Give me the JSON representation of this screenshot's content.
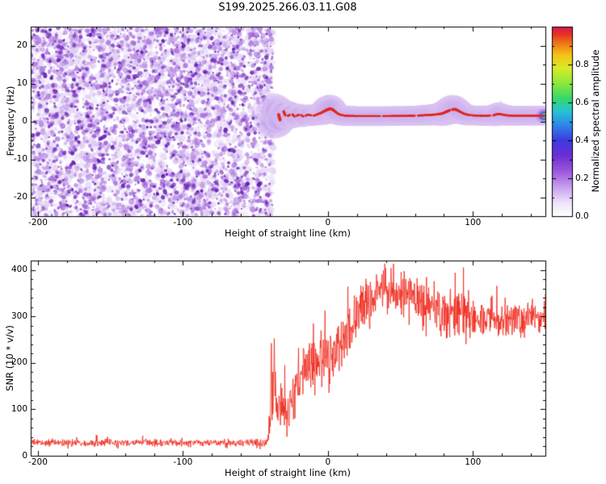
{
  "title": "S199.2025.266.03.11.G08",
  "chart_data": [
    {
      "type": "heatmap",
      "title": "S199.2025.266.03.11.G08",
      "xlabel": "Height of straight line (km)",
      "ylabel": "Frequency (Hz)",
      "xlim": [
        -205,
        150
      ],
      "ylim": [
        -25,
        25
      ],
      "x_ticks": [
        -200,
        -100,
        0,
        100
      ],
      "y_ticks": [
        -20,
        -10,
        0,
        10,
        20
      ],
      "x_minor_step": 20,
      "y_minor_step": 5,
      "noise_region": {
        "x_start": -205,
        "x_end": -38,
        "palette": [
          "#ece2f8",
          "#d6bdf2",
          "#b98ae6",
          "#9a5ad8",
          "#7b2fc8",
          "#5a14a8"
        ]
      },
      "signal_band": {
        "centerline": [
          [
            -38,
            0.3
          ],
          [
            -37,
            2.6
          ],
          [
            -36.2,
            -0.4
          ],
          [
            -35.4,
            1.8
          ],
          [
            -34.5,
            3.0
          ],
          [
            -33.6,
            0.8
          ],
          [
            -32.6,
            0.2
          ],
          [
            -31.6,
            1.6
          ],
          [
            -30.5,
            2.6
          ],
          [
            -29,
            1.2
          ],
          [
            -27,
            1.6
          ],
          [
            -25,
            2.0
          ],
          [
            -23,
            1.3
          ],
          [
            -21,
            1.6
          ],
          [
            -19,
            1.8
          ],
          [
            -17,
            1.3
          ],
          [
            -15,
            1.6
          ],
          [
            -13,
            1.8
          ],
          [
            -11,
            1.5
          ],
          [
            -9,
            1.6
          ],
          [
            -7,
            1.9
          ],
          [
            -5,
            2.2
          ],
          [
            -3,
            2.6
          ],
          [
            -1,
            3.0
          ],
          [
            1,
            3.3
          ],
          [
            3,
            3.2
          ],
          [
            5,
            2.6
          ],
          [
            7,
            2.0
          ],
          [
            9,
            1.7
          ],
          [
            12,
            1.5
          ],
          [
            16,
            1.45
          ],
          [
            20,
            1.4
          ],
          [
            30,
            1.4
          ],
          [
            40,
            1.4
          ],
          [
            50,
            1.45
          ],
          [
            60,
            1.5
          ],
          [
            65,
            1.6
          ],
          [
            70,
            1.7
          ],
          [
            75,
            1.85
          ],
          [
            79,
            2.1
          ],
          [
            82,
            2.6
          ],
          [
            85,
            3.1
          ],
          [
            88,
            3.2
          ],
          [
            91,
            2.6
          ],
          [
            94,
            2.0
          ],
          [
            97,
            1.7
          ],
          [
            101,
            1.55
          ],
          [
            106,
            1.5
          ],
          [
            110,
            1.5
          ],
          [
            114,
            1.6
          ],
          [
            117,
            1.95
          ],
          [
            120,
            1.85
          ],
          [
            123,
            1.6
          ],
          [
            127,
            1.5
          ],
          [
            135,
            1.5
          ],
          [
            142,
            1.5
          ],
          [
            150,
            1.5
          ]
        ],
        "width_scale": [
          [
            -38,
            1.9
          ],
          [
            -35,
            1.7
          ],
          [
            -32,
            1.5
          ],
          [
            -29,
            1.35
          ],
          [
            -26,
            1.25
          ],
          [
            -22,
            1.15
          ],
          [
            -15,
            1.05
          ],
          [
            -8,
            1.05
          ],
          [
            -4,
            1.25
          ],
          [
            -1,
            1.45
          ],
          [
            2,
            1.45
          ],
          [
            5,
            1.25
          ],
          [
            9,
            1.05
          ],
          [
            20,
            1.0
          ],
          [
            60,
            1.0
          ],
          [
            75,
            1.1
          ],
          [
            80,
            1.3
          ],
          [
            85,
            1.5
          ],
          [
            90,
            1.3
          ],
          [
            95,
            1.1
          ],
          [
            100,
            1.0
          ],
          [
            113,
            1.05
          ],
          [
            117,
            1.2
          ],
          [
            122,
            1.05
          ],
          [
            130,
            1.0
          ],
          [
            150,
            1.0
          ]
        ],
        "layers": [
          {
            "color": "#d9c2f2",
            "width_hz": 5.2,
            "alpha": 0.45
          },
          {
            "color": "#b48ae8",
            "width_hz": 3.6,
            "alpha": 0.6
          },
          {
            "color": "#7e57e0",
            "width_hz": 2.5,
            "alpha": 0.85
          },
          {
            "color": "#2f62e0",
            "width_hz": 1.9,
            "alpha": 0.95
          },
          {
            "color": "#22b8e0",
            "width_hz": 1.45,
            "alpha": 0.95
          },
          {
            "color": "#35d455",
            "width_hz": 1.05,
            "alpha": 0.95
          },
          {
            "color": "#cfe62a",
            "width_hz": 0.75,
            "alpha": 0.95
          },
          {
            "color": "#f5e514",
            "width_hz": 0.55,
            "alpha": 0.95
          }
        ],
        "core": {
          "color": "#e0261a",
          "width_hz": 0.32,
          "segments": [
            [
              -34,
              -33
            ],
            [
              -30.5,
              -29.5
            ],
            [
              -27.5,
              -26.5
            ],
            [
              -24.5,
              -23
            ],
            [
              -21.5,
              -20
            ],
            [
              -18.5,
              -17
            ],
            [
              -15.5,
              -11.5
            ],
            [
              -10,
              36
            ],
            [
              38,
              60
            ],
            [
              62,
              84
            ],
            [
              86,
              112
            ],
            [
              114,
              150
            ]
          ]
        }
      },
      "colorbar": {
        "label": "Normalized spectral amplitude",
        "range": [
          0,
          1
        ],
        "ticks": [
          0,
          0.2,
          0.4,
          0.6,
          0.8
        ],
        "minor_step": 0.1,
        "stops": [
          {
            "pos": 0,
            "color": "#ffffff"
          },
          {
            "pos": 0.07,
            "color": "#efe4fa"
          },
          {
            "pos": 0.15,
            "color": "#c9a2ee"
          },
          {
            "pos": 0.24,
            "color": "#9a55dc"
          },
          {
            "pos": 0.32,
            "color": "#6c2ed4"
          },
          {
            "pos": 0.4,
            "color": "#3b3be0"
          },
          {
            "pos": 0.48,
            "color": "#2f86e8"
          },
          {
            "pos": 0.55,
            "color": "#25c2d8"
          },
          {
            "pos": 0.62,
            "color": "#35d86e"
          },
          {
            "pos": 0.7,
            "color": "#8ce83c"
          },
          {
            "pos": 0.78,
            "color": "#d8ec28"
          },
          {
            "pos": 0.85,
            "color": "#f5c318"
          },
          {
            "pos": 0.91,
            "color": "#f07818"
          },
          {
            "pos": 0.96,
            "color": "#e63222"
          },
          {
            "pos": 1,
            "color": "#d4175e"
          }
        ]
      }
    },
    {
      "type": "line",
      "xlabel": "Height of straight line (km)",
      "ylabel": "SNR (10 * v/v)",
      "xlim": [
        -205,
        150
      ],
      "ylim": [
        0,
        420
      ],
      "x_ticks": [
        -200,
        -100,
        0,
        100
      ],
      "y_ticks": [
        0,
        100,
        200,
        300,
        400
      ],
      "x_minor_step": 20,
      "y_minor_step": 20,
      "color": "#f02418",
      "envelope": {
        "x": [
          -205,
          -60,
          -45,
          -42,
          -40.5,
          -39,
          -38,
          -37,
          -36,
          -34,
          -32,
          -30,
          -28,
          -26,
          -24,
          -22,
          -20,
          -17,
          -14,
          -11,
          -8,
          -5,
          -2,
          0,
          3,
          6,
          10,
          14,
          18,
          22,
          26,
          30,
          35,
          40,
          45,
          50,
          55,
          60,
          65,
          70,
          75,
          80,
          85,
          90,
          95,
          100,
          105,
          110,
          115,
          120,
          125,
          130,
          135,
          140,
          145,
          150
        ],
        "mean": [
          28,
          28,
          28,
          30,
          60,
          200,
          160,
          260,
          120,
          90,
          110,
          95,
          80,
          95,
          120,
          150,
          170,
          180,
          185,
          190,
          195,
          200,
          205,
          210,
          220,
          235,
          250,
          270,
          295,
          315,
          330,
          340,
          350,
          352,
          355,
          350,
          345,
          340,
          332,
          322,
          312,
          302,
          300,
          310,
          300,
          295,
          290,
          294,
          300,
          288,
          295,
          300,
          295,
          300,
          297,
          300
        ],
        "amp": [
          9,
          9,
          10,
          15,
          60,
          150,
          120,
          110,
          90,
          60,
          70,
          65,
          55,
          60,
          70,
          75,
          75,
          70,
          70,
          70,
          72,
          74,
          76,
          80,
          80,
          80,
          80,
          75,
          72,
          70,
          70,
          68,
          62,
          60,
          58,
          60,
          60,
          60,
          60,
          60,
          62,
          68,
          70,
          60,
          60,
          55,
          55,
          52,
          50,
          55,
          50,
          50,
          50,
          46,
          45,
          45
        ]
      }
    }
  ]
}
